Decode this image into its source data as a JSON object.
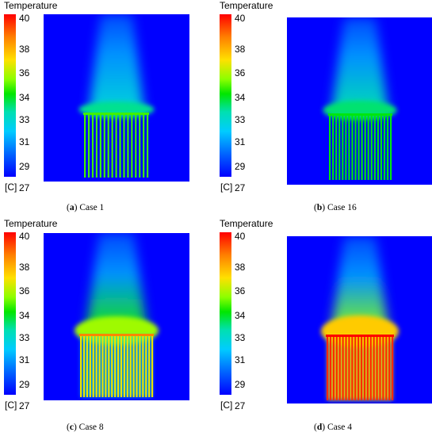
{
  "colorbar": {
    "title": "Temperature",
    "unit": "[C]",
    "ticks": [
      "40",
      "38",
      "36",
      "34",
      "33",
      "31",
      "29",
      "27"
    ]
  },
  "panels": [
    {
      "letter": "a",
      "label": " Case 1"
    },
    {
      "letter": "b",
      "label": " Case 16"
    },
    {
      "letter": "c",
      "label": " Case 8"
    },
    {
      "letter": "d",
      "label": " Case 4"
    }
  ]
}
